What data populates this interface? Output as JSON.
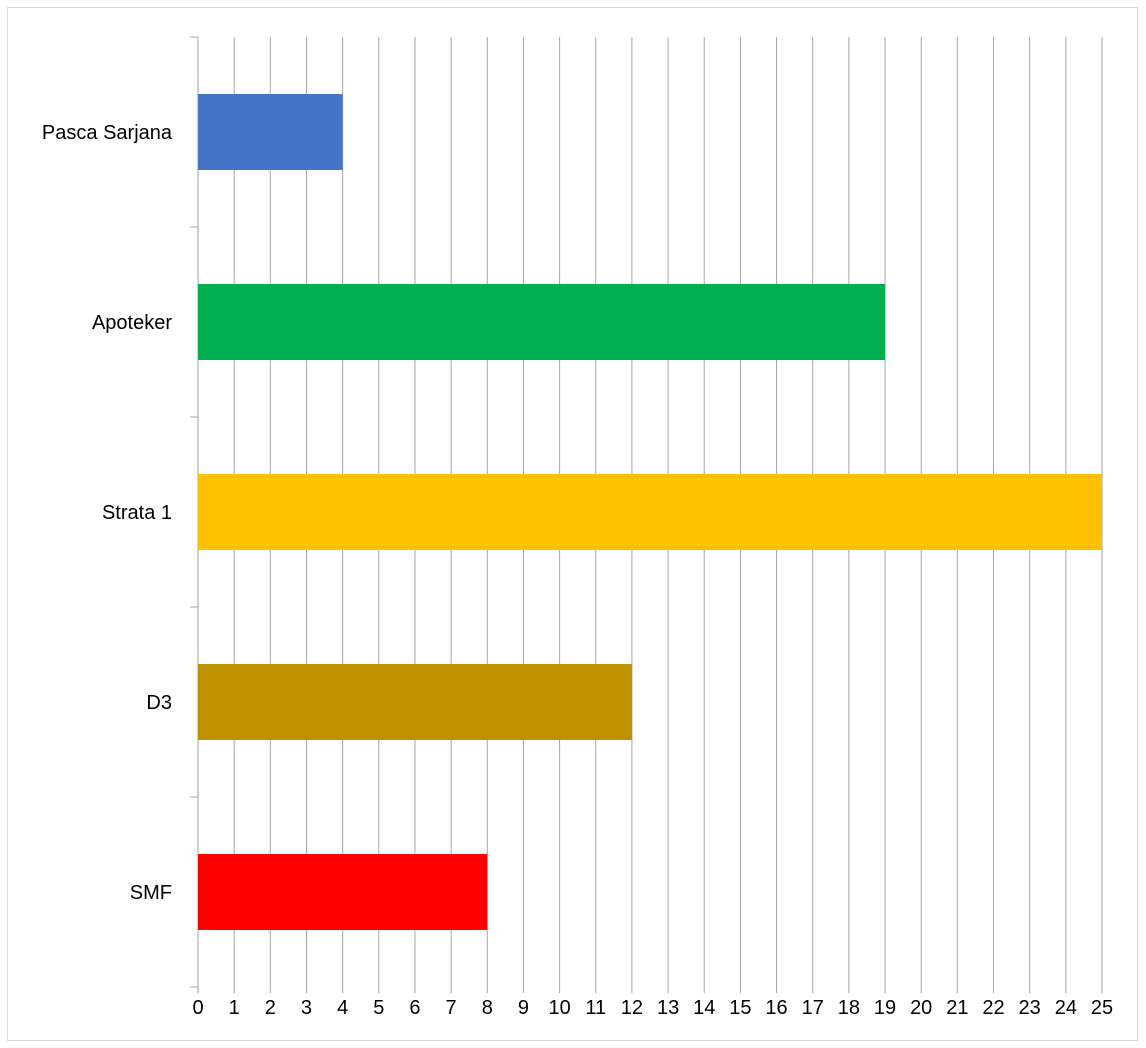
{
  "chart_data": {
    "type": "bar",
    "orientation": "horizontal",
    "categories": [
      "Pasca Sarjana",
      "Apoteker",
      "Strata 1",
      "D3",
      "SMF"
    ],
    "values": [
      4,
      19,
      25,
      12,
      8
    ],
    "colors": [
      "#4472c4",
      "#00b050",
      "#ffc000",
      "#bf9000",
      "#ff0000"
    ],
    "xlim": [
      0,
      25
    ],
    "xticks": [
      "0",
      "1",
      "2",
      "3",
      "4",
      "5",
      "6",
      "7",
      "8",
      "9",
      "10",
      "11",
      "12",
      "13",
      "14",
      "15",
      "16",
      "17",
      "18",
      "19",
      "20",
      "21",
      "22",
      "23",
      "24",
      "25"
    ],
    "grid": true,
    "gridColor": "#a6a6a6",
    "legend": false
  }
}
